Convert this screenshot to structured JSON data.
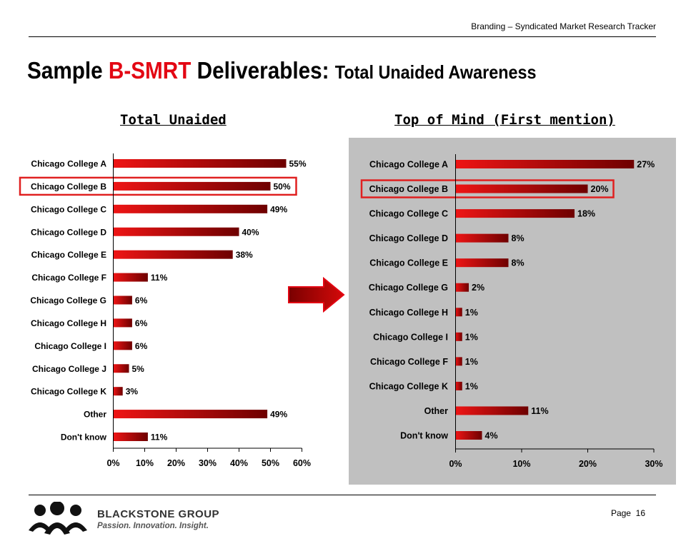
{
  "header": {
    "tracker": "Branding – Syndicated Market Research Tracker"
  },
  "title": {
    "part1": "Sample ",
    "part2": "B-SMRT",
    "part3": " Deliverables: ",
    "part4": "Total Unaided Awareness"
  },
  "colors": {
    "accent": "#e30613",
    "bar_start": "#ee1515",
    "bar_end": "#6e0000",
    "highlight": "#e02020",
    "panel": "#c0c0c0"
  },
  "footer": {
    "brand": "BLACKSTONE GROUP",
    "tagline": "Passion. Innovation. Insight.",
    "page_label": "Page",
    "page_number": "16"
  },
  "chart_data": [
    {
      "type": "bar",
      "orientation": "horizontal",
      "title": "Total Unaided",
      "categories": [
        "Chicago College A",
        "Chicago College B",
        "Chicago College C",
        "Chicago College D",
        "Chicago College E",
        "Chicago College F",
        "Chicago College G",
        "Chicago College H",
        "Chicago College I",
        "Chicago College J",
        "Chicago College K",
        "Other",
        "Don't know"
      ],
      "values": [
        55,
        50,
        49,
        40,
        38,
        11,
        6,
        6,
        6,
        5,
        3,
        49,
        11
      ],
      "value_labels": [
        "55%",
        "50%",
        "49%",
        "40%",
        "38%",
        "11%",
        "6%",
        "6%",
        "6%",
        "5%",
        "3%",
        "49%",
        "11%"
      ],
      "highlight": "Chicago College B",
      "xlim": [
        0,
        60
      ],
      "ticks": [
        "0%",
        "10%",
        "20%",
        "30%",
        "40%",
        "50%",
        "60%"
      ],
      "grid": false
    },
    {
      "type": "bar",
      "orientation": "horizontal",
      "title": "Top of Mind (First mention)",
      "categories": [
        "Chicago College A",
        "Chicago College B",
        "Chicago College C",
        "Chicago College D",
        "Chicago College E",
        "Chicago College G",
        "Chicago College H",
        "Chicago College I",
        "Chicago College F",
        "Chicago College K",
        "Other",
        "Don't know"
      ],
      "values": [
        27,
        20,
        18,
        8,
        8,
        2,
        1,
        1,
        1,
        1,
        11,
        4
      ],
      "value_labels": [
        "27%",
        "20%",
        "18%",
        "8%",
        "8%",
        "2%",
        "1%",
        "1%",
        "1%",
        "1%",
        "11%",
        "4%"
      ],
      "highlight": "Chicago College B",
      "xlim": [
        0,
        30
      ],
      "ticks": [
        "0%",
        "10%",
        "20%",
        "30%"
      ],
      "grid": false
    }
  ]
}
